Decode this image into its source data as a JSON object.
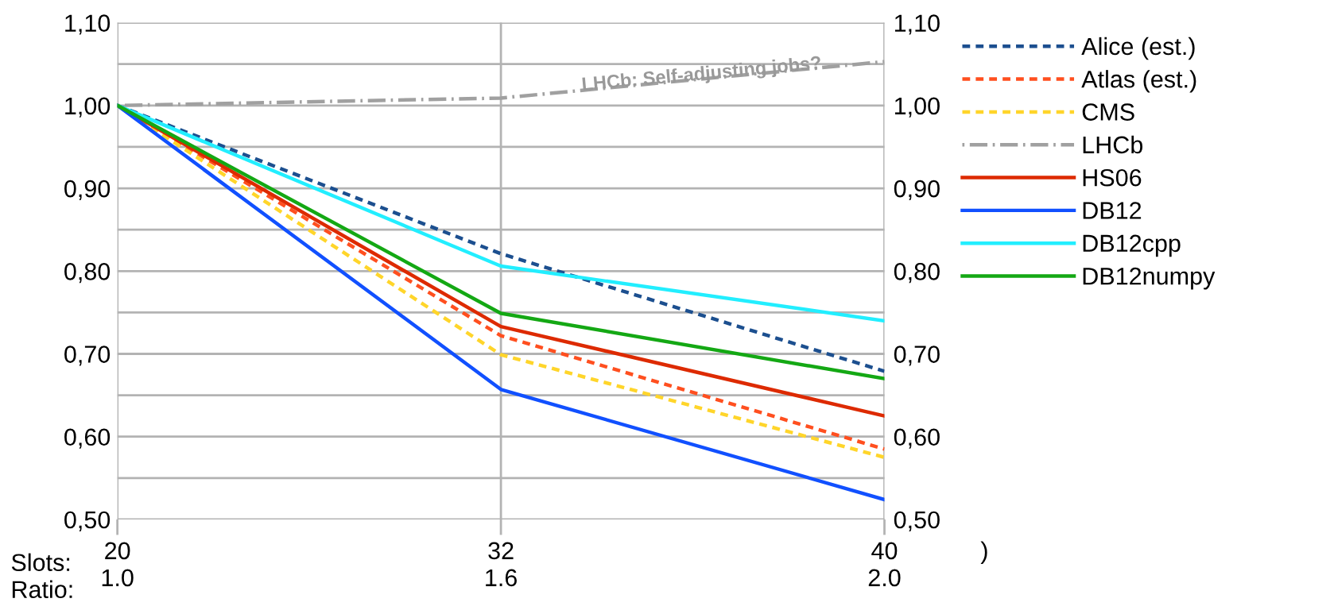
{
  "chart_data": {
    "type": "line",
    "categories": [
      "20\n1.0",
      "32\n1.6",
      "40\n2.0"
    ],
    "series": [
      {
        "name": "Alice (est.)",
        "color": "#1c4f8f",
        "line_style": "dotted",
        "values": [
          1.0,
          0.821,
          0.679
        ]
      },
      {
        "name": "Atlas (est.)",
        "color": "#ff4f1f",
        "line_style": "dotted",
        "values": [
          1.0,
          0.722,
          0.585
        ]
      },
      {
        "name": "CMS",
        "color": "#ffd52a",
        "line_style": "dotted",
        "values": [
          1.0,
          0.699,
          0.575
        ]
      },
      {
        "name": "LHCb",
        "color": "#a0a0a0",
        "line_style": "dashed",
        "values": [
          1.0,
          1.009,
          1.053
        ]
      },
      {
        "name": "HS06",
        "color": "#dd2a00",
        "line_style": "solid",
        "values": [
          1.0,
          0.733,
          0.625
        ]
      },
      {
        "name": "DB12",
        "color": "#1150ff",
        "line_style": "solid",
        "values": [
          1.0,
          0.657,
          0.524
        ]
      },
      {
        "name": "DB12cpp",
        "color": "#22eeff",
        "line_style": "solid",
        "values": [
          1.0,
          0.806,
          0.74
        ]
      },
      {
        "name": "DB12numpy",
        "color": "#14a814",
        "line_style": "solid",
        "values": [
          1.0,
          0.749,
          0.67
        ]
      }
    ],
    "ylim": [
      0.5,
      1.1
    ],
    "yticks": [
      {
        "value": 0.5,
        "label": "0,50"
      },
      {
        "value": 0.55,
        "label": null
      },
      {
        "value": 0.6,
        "label": "0,60"
      },
      {
        "value": 0.65,
        "label": null
      },
      {
        "value": 0.7,
        "label": "0,70"
      },
      {
        "value": 0.75,
        "label": null
      },
      {
        "value": 0.8,
        "label": "0,80"
      },
      {
        "value": 0.85,
        "label": null
      },
      {
        "value": 0.9,
        "label": "0,90"
      },
      {
        "value": 0.95,
        "label": null
      },
      {
        "value": 1.0,
        "label": "1,00"
      },
      {
        "value": 1.05,
        "label": null
      },
      {
        "value": 1.1,
        "label": "1,10"
      }
    ],
    "y2lim": [
      0.5,
      1.1
    ],
    "y2ticks": [
      {
        "value": 0.5,
        "label": "0,50"
      },
      {
        "value": 0.6,
        "label": "0,60"
      },
      {
        "value": 0.7,
        "label": "0,70"
      },
      {
        "value": 0.8,
        "label": "0,80"
      },
      {
        "value": 0.9,
        "label": "0,90"
      },
      {
        "value": 1.0,
        "label": "1,00"
      },
      {
        "value": 1.1,
        "label": "1,10"
      }
    ],
    "annotations": [
      "LHCb: Self-adjusting jobs?",
      "Slots:\nRatio:",
      ")"
    ],
    "grid": true,
    "legend": "right",
    "marker": "none"
  }
}
